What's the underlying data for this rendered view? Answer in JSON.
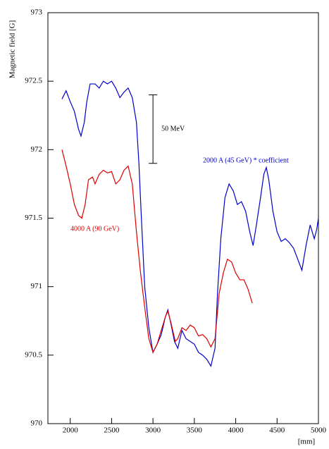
{
  "chart_data": {
    "type": "line",
    "xlabel": "[mm]",
    "ylabel": "Magnetic field [G]",
    "xlim": [
      1730,
      5000
    ],
    "ylim": [
      970,
      973
    ],
    "xticks": [
      2000,
      2500,
      3000,
      3500,
      4000,
      4500,
      5000
    ],
    "yticks": [
      970,
      970.5,
      971,
      971.5,
      972,
      972.5,
      973
    ],
    "series": [
      {
        "name": "2000 A (45 GeV) * coefficient",
        "color": "#0000cc",
        "x": [
          1900,
          1950,
          2000,
          2050,
          2100,
          2130,
          2170,
          2200,
          2240,
          2300,
          2350,
          2400,
          2450,
          2500,
          2550,
          2600,
          2650,
          2700,
          2750,
          2800,
          2830,
          2860,
          2900,
          2950,
          3000,
          3050,
          3100,
          3150,
          3180,
          3220,
          3260,
          3300,
          3350,
          3400,
          3450,
          3500,
          3550,
          3600,
          3650,
          3700,
          3750,
          3780,
          3820,
          3870,
          3920,
          3970,
          4020,
          4070,
          4120,
          4170,
          4210,
          4250,
          4300,
          4340,
          4370,
          4400,
          4450,
          4500,
          4550,
          4600,
          4650,
          4700,
          4750,
          4800,
          4850,
          4900,
          4950,
          4980,
          5000
        ],
        "values": [
          972.37,
          972.43,
          972.35,
          972.28,
          972.15,
          972.1,
          972.2,
          972.35,
          972.48,
          972.48,
          972.45,
          972.5,
          972.48,
          972.5,
          972.45,
          972.38,
          972.42,
          972.45,
          972.38,
          972.2,
          971.9,
          971.5,
          971.0,
          970.7,
          970.52,
          970.58,
          970.65,
          970.78,
          970.83,
          970.72,
          970.6,
          970.55,
          970.68,
          970.62,
          970.6,
          970.58,
          970.52,
          970.5,
          970.47,
          970.42,
          970.55,
          970.95,
          971.35,
          971.65,
          971.75,
          971.7,
          971.6,
          971.62,
          971.55,
          971.4,
          971.3,
          971.45,
          971.65,
          971.82,
          971.87,
          971.78,
          971.55,
          971.4,
          971.33,
          971.35,
          971.32,
          971.28,
          971.2,
          971.12,
          971.3,
          971.45,
          971.35,
          971.42,
          971.5
        ]
      },
      {
        "name": "4000 A (90 GeV)",
        "color": "#dd0000",
        "x": [
          1900,
          1950,
          2000,
          2050,
          2100,
          2140,
          2180,
          2220,
          2270,
          2300,
          2350,
          2400,
          2450,
          2500,
          2550,
          2600,
          2650,
          2700,
          2750,
          2800,
          2850,
          2900,
          2950,
          3000,
          3050,
          3100,
          3150,
          3180,
          3220,
          3270,
          3300,
          3350,
          3400,
          3450,
          3500,
          3550,
          3600,
          3650,
          3700,
          3750,
          3800,
          3850,
          3900,
          3950,
          4000,
          4050,
          4100,
          4150,
          4200
        ],
        "values": [
          972.0,
          971.88,
          971.75,
          971.6,
          971.52,
          971.5,
          971.6,
          971.78,
          971.8,
          971.75,
          971.82,
          971.85,
          971.83,
          971.84,
          971.75,
          971.78,
          971.85,
          971.88,
          971.75,
          971.4,
          971.1,
          970.85,
          970.62,
          970.52,
          970.58,
          970.68,
          970.78,
          970.82,
          970.73,
          970.6,
          970.62,
          970.7,
          970.68,
          970.72,
          970.7,
          970.64,
          970.65,
          970.62,
          970.56,
          970.62,
          970.95,
          971.1,
          971.2,
          971.18,
          971.1,
          971.05,
          971.05,
          970.98,
          970.88
        ]
      }
    ],
    "annotation": {
      "text": "50 MeV",
      "x": 3000,
      "y_range": [
        971.9,
        972.4
      ]
    }
  }
}
